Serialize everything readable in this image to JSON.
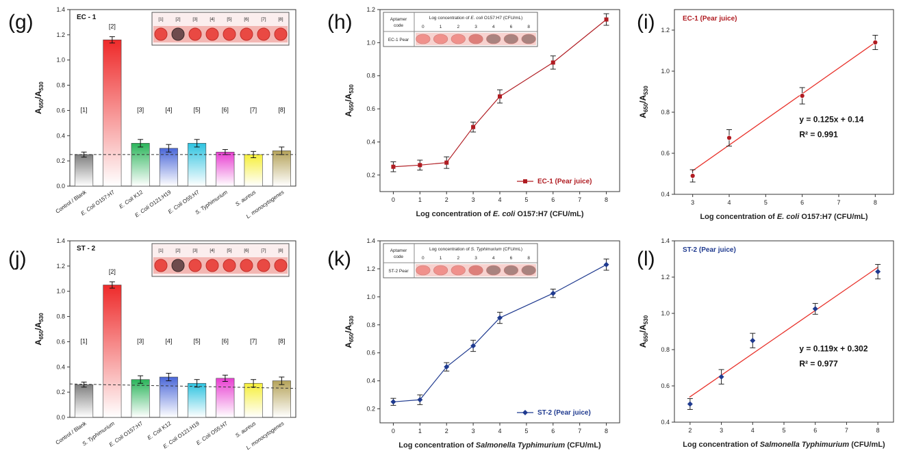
{
  "colors": {
    "ec": "#b01c22",
    "st": "#1f3a8f",
    "fit_line": "#e8322b",
    "dashed": "#333333"
  },
  "chart_data": [
    {
      "panel": "(g)",
      "type": "bar",
      "title": "EC - 1",
      "ylabel": "A650/A530",
      "ylim": [
        0,
        1.4
      ],
      "yticks": [
        0.0,
        0.2,
        0.4,
        0.6,
        0.8,
        1.0,
        1.2,
        1.4
      ],
      "threshold": 0.25,
      "categories": [
        "Control / Blank",
        "E. Coli O157:H7",
        "E. Coli K12",
        "E. Coli O121:H19",
        "E. Coli O55:H7",
        "S. Typhimurium",
        "S. aureus",
        "L. monocytogenes"
      ],
      "bar_labels": [
        "[1]",
        "[2]",
        "[3]",
        "[4]",
        "[5]",
        "[6]",
        "[7]",
        "[8]"
      ],
      "values": [
        0.25,
        1.16,
        0.34,
        0.3,
        0.34,
        0.27,
        0.25,
        0.28
      ],
      "errors": [
        0.02,
        0.025,
        0.03,
        0.03,
        0.03,
        0.02,
        0.025,
        0.03
      ],
      "bar_colors": [
        "#7f7f7f",
        "#ee2a2a",
        "#2ab45a",
        "#4a67d8",
        "#2ec3e0",
        "#e83fd1",
        "#f6ef3a",
        "#b5a35a"
      ],
      "inset_labels": [
        "[1]",
        "[2]",
        "[3]",
        "[4]",
        "[5]",
        "[6]",
        "[7]",
        "[8]"
      ],
      "inset_dark": [
        2
      ]
    },
    {
      "panel": "(h)",
      "type": "line",
      "xlabel": "Log concentration of E. coli O157:H7 (CFU/mL)",
      "ylabel": "A650/A530",
      "xlim": [
        -0.5,
        8.5
      ],
      "ylim": [
        0.1,
        1.2
      ],
      "xticks": [
        0,
        1,
        2,
        3,
        4,
        5,
        6,
        7,
        8
      ],
      "yticks": [
        0.2,
        0.4,
        0.6,
        0.8,
        1.0,
        1.2
      ],
      "series": [
        {
          "name": "EC-1 (Pear juice)",
          "x": [
            0,
            1,
            2,
            3,
            4,
            6,
            8
          ],
          "y": [
            0.25,
            0.26,
            0.275,
            0.49,
            0.675,
            0.88,
            1.14
          ],
          "errors": [
            0.03,
            0.03,
            0.035,
            0.03,
            0.04,
            0.04,
            0.035
          ]
        }
      ],
      "inset": {
        "header": "Aptamer code",
        "title": "Log concentration of E. coli O157:H7 (CFU/mL)",
        "cols": [
          "0",
          "1",
          "2",
          "3",
          "4",
          "6",
          "8"
        ],
        "row_label": "EC-1 Pear"
      }
    },
    {
      "panel": "(i)",
      "type": "scatter",
      "title": "EC-1 (Pear juice)",
      "xlabel": "Log concentration of E. coli O157:H7 (CFU/mL)",
      "ylabel": "A650/A530",
      "xlim": [
        2.5,
        8.5
      ],
      "ylim": [
        0.4,
        1.3
      ],
      "xticks": [
        3,
        4,
        5,
        6,
        7,
        8
      ],
      "yticks": [
        0.4,
        0.6,
        0.8,
        1.0,
        1.2
      ],
      "x": [
        3,
        4,
        6,
        8
      ],
      "y": [
        0.49,
        0.675,
        0.88,
        1.14
      ],
      "errors": [
        0.03,
        0.04,
        0.04,
        0.035
      ],
      "fit": {
        "slope": 0.125,
        "intercept": 0.14,
        "equation": "y = 0.125x + 0.14",
        "r2": "R² = 0.991"
      }
    },
    {
      "panel": "(j)",
      "type": "bar",
      "title": "ST - 2",
      "ylabel": "A650/A530",
      "ylim": [
        0,
        1.4
      ],
      "yticks": [
        0.0,
        0.2,
        0.4,
        0.6,
        0.8,
        1.0,
        1.2,
        1.4
      ],
      "threshold": 0.265,
      "threshold_end": 0.23,
      "categories": [
        "Control / Blank",
        "S. Typhimurium",
        "E. Coli O157:H7",
        "E. Coli K12",
        "E. Coli O121:H19",
        "E. Coli O55:H7",
        "S. aureus",
        "L. monocytogenes"
      ],
      "bar_labels": [
        "[1]",
        "[2]",
        "[3]",
        "[4]",
        "[5]",
        "[6]",
        "[7]",
        "[8]"
      ],
      "values": [
        0.26,
        1.05,
        0.3,
        0.32,
        0.27,
        0.31,
        0.27,
        0.29
      ],
      "errors": [
        0.02,
        0.025,
        0.03,
        0.03,
        0.03,
        0.025,
        0.03,
        0.03
      ],
      "bar_colors": [
        "#7f7f7f",
        "#ee2a2a",
        "#2ab45a",
        "#4a67d8",
        "#2ec3e0",
        "#e83fd1",
        "#f6ef3a",
        "#b5a35a"
      ],
      "inset_labels": [
        "[1]",
        "[2]",
        "[3]",
        "[4]",
        "[5]",
        "[6]",
        "[7]",
        "[8]"
      ],
      "inset_dark": [
        2
      ]
    },
    {
      "panel": "(k)",
      "type": "line",
      "xlabel": "Log concentration of Salmonella Typhimurium (CFU/mL)",
      "ylabel": "A650/A530",
      "xlim": [
        -0.5,
        8.5
      ],
      "ylim": [
        0.1,
        1.4
      ],
      "xticks": [
        0,
        1,
        2,
        3,
        4,
        5,
        6,
        7,
        8
      ],
      "yticks": [
        0.2,
        0.4,
        0.6,
        0.8,
        1.0,
        1.2,
        1.4
      ],
      "series": [
        {
          "name": "ST-2 (Pear juice)",
          "x": [
            0,
            1,
            2,
            4,
            3,
            6,
            8
          ],
          "y": [
            0.25,
            0.265,
            0.5,
            0.85,
            0.65,
            1.025,
            1.23
          ],
          "errors": [
            0.025,
            0.035,
            0.03,
            0.04,
            0.04,
            0.03,
            0.04
          ]
        }
      ],
      "inset": {
        "header": "Aptamer code",
        "title": "Log concentration of S. Typhimurium (CFU/mL)",
        "cols": [
          "0",
          "1",
          "2",
          "3",
          "4",
          "6",
          "8"
        ],
        "row_label": "ST-2 Pear"
      }
    },
    {
      "panel": "(l)",
      "type": "scatter",
      "title": "ST-2 (Pear juice)",
      "xlabel": "Log concentration of Salmonella Typhimurium (CFU/mL)",
      "ylabel": "A650/A530",
      "xlim": [
        1.5,
        8.5
      ],
      "ylim": [
        0.4,
        1.4
      ],
      "xticks": [
        2,
        3,
        4,
        5,
        6,
        7,
        8
      ],
      "yticks": [
        0.4,
        0.6,
        0.8,
        1.0,
        1.2,
        1.4
      ],
      "x": [
        2,
        3,
        4,
        6,
        8
      ],
      "y": [
        0.5,
        0.65,
        0.85,
        1.025,
        1.23
      ],
      "errors": [
        0.03,
        0.04,
        0.04,
        0.03,
        0.04
      ],
      "fit": {
        "slope": 0.119,
        "intercept": 0.302,
        "equation": "y = 0.119x + 0.302",
        "r2": "R² = 0.977"
      }
    }
  ]
}
